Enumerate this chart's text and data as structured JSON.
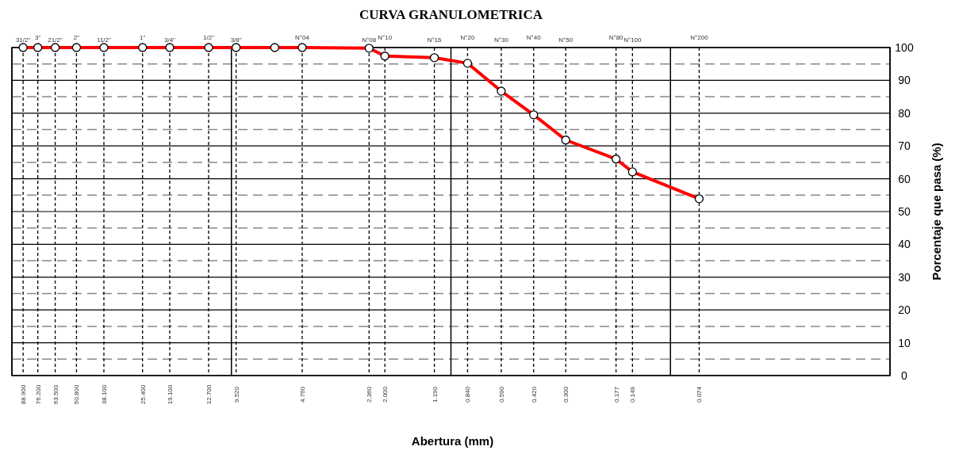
{
  "chart_data": {
    "type": "line",
    "title": "CURVA GRANULOMETRICA",
    "xlabel": "Abertura (mm)",
    "ylabel": "Porcentaje que pasa (%)",
    "log": "x",
    "grid": true,
    "marker": "circle",
    "line_style": "solid",
    "xlim": [
      100,
      0.01
    ],
    "ylim": [
      0,
      100
    ],
    "x": [
      88.9,
      76.2,
      63.5,
      50.8,
      38.1,
      25.4,
      19.1,
      12.7,
      9.52,
      6.35,
      4.76,
      2.36,
      2.0,
      1.19,
      0.84,
      0.59,
      0.42,
      0.3,
      0.177,
      0.149,
      0.074
    ],
    "series": [
      {
        "color": "#ff0000",
        "values": [
          100,
          100,
          100,
          100,
          100,
          100,
          100,
          100,
          100,
          100,
          100,
          99.8,
          97.4,
          96.9,
          95.2,
          86.7,
          79.5,
          71.8,
          66.0,
          62.1,
          53.9
        ]
      }
    ],
    "xticks": [
      {
        "value": 100,
        "label": null
      },
      {
        "value": 10,
        "label": null
      },
      {
        "value": 1,
        "label": null
      },
      {
        "value": 0.1,
        "label": null
      },
      {
        "value": 0.01,
        "label": null
      },
      {
        "value": 88.9,
        "label": "88.900"
      },
      {
        "value": 76.2,
        "label": "76.200"
      },
      {
        "value": 63.5,
        "label": "63.500"
      },
      {
        "value": 50.8,
        "label": "50.800"
      },
      {
        "value": 38.1,
        "label": "38.100"
      },
      {
        "value": 25.4,
        "label": "25.400"
      },
      {
        "value": 19.1,
        "label": "19.100"
      },
      {
        "value": 12.7,
        "label": "12.700"
      },
      {
        "value": 9.52,
        "label": "9.520"
      },
      {
        "value": 4.76,
        "label": "4.760"
      },
      {
        "value": 2.36,
        "label": "2.360"
      },
      {
        "value": 2.0,
        "label": "2.000"
      },
      {
        "value": 1.19,
        "label": "1.190"
      },
      {
        "value": 0.84,
        "label": "0.840"
      },
      {
        "value": 0.59,
        "label": "0.590"
      },
      {
        "value": 0.42,
        "label": "0.420"
      },
      {
        "value": 0.3,
        "label": "0.300"
      },
      {
        "value": 0.177,
        "label": "0.177"
      },
      {
        "value": 0.149,
        "label": "0.149"
      },
      {
        "value": 0.074,
        "label": "0.074"
      }
    ],
    "annotations": [
      "31/2\"",
      "3\"",
      "21/2\"",
      "2\"",
      "11/2\"",
      "1\"",
      "3/4\"",
      "1/2\"",
      "3/8\"",
      "N°04",
      "N°08",
      "N°10",
      "N°16",
      "N°20",
      "N°30",
      "N°40",
      "N°50",
      "N°80",
      "N°100",
      "N°200"
    ],
    "yticks": [
      0,
      {
        "value": 5,
        "label": null
      },
      10,
      {
        "value": 15,
        "label": null
      },
      20,
      {
        "value": 25,
        "label": null
      },
      30,
      {
        "value": 35,
        "label": null
      },
      40,
      {
        "value": 45,
        "label": null
      },
      50,
      {
        "value": 55,
        "label": null
      },
      60,
      {
        "value": 65,
        "label": null
      },
      70,
      {
        "value": 75,
        "label": null
      },
      80,
      {
        "value": 85,
        "label": null
      },
      90,
      {
        "value": 95,
        "label": null
      },
      100
    ]
  }
}
